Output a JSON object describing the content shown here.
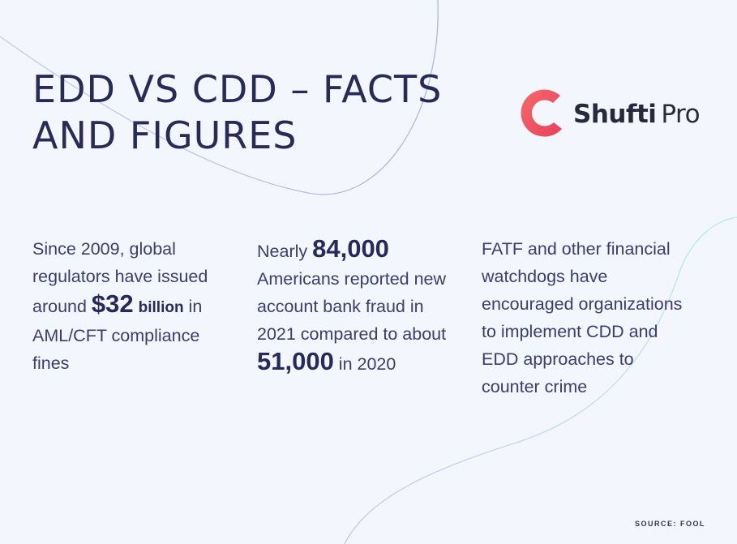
{
  "title": {
    "line1": "EDD VS CDD – FACTS",
    "line2": "AND FIGURES"
  },
  "logo": {
    "icon": "shufti-pro-ring-icon",
    "word1": "Shufti",
    "word2": "Pro",
    "color": "#ef4f63"
  },
  "facts": [
    {
      "pre": "Since 2009, global regulators have issued around ",
      "highlight": "$32",
      "unit": "billion",
      "post": " in AML/CFT compliance fines"
    },
    {
      "pre": "Nearly ",
      "highlight1": "84,000",
      "mid": " Americans reported new account bank fraud in 2021 compared to about ",
      "highlight2": "51,000",
      "post": " in 2020"
    },
    {
      "text": "FATF and other financial watchdogs have encouraged organizations to implement CDD and EDD approaches to counter crime"
    }
  ],
  "source": "SOURCE: FOOL",
  "colors": {
    "background": "#f4f6fd",
    "text": "#3a3d6e",
    "heading": "#282b58",
    "accent": "#ef4f63"
  }
}
